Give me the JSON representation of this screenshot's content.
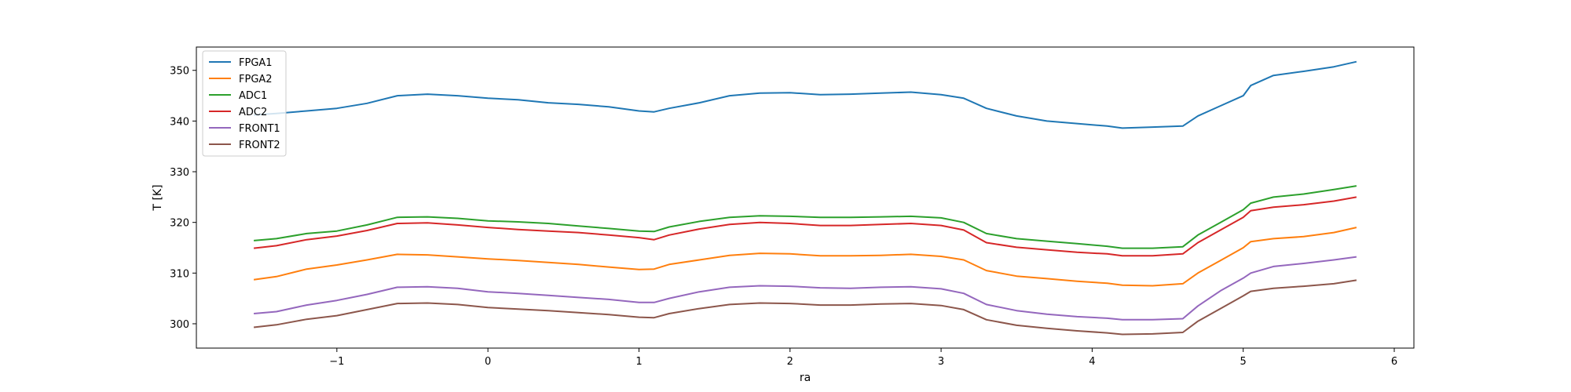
{
  "chart_data": {
    "type": "line",
    "title": "",
    "xlabel": "ra",
    "ylabel": "T [K]",
    "xlim": [
      -1.93,
      6.13
    ],
    "ylim": [
      295.2,
      354.6
    ],
    "xticks": [
      -1,
      0,
      1,
      2,
      3,
      4,
      5,
      6
    ],
    "xtick_labels": [
      "−1",
      "0",
      "1",
      "2",
      "3",
      "4",
      "5",
      "6"
    ],
    "yticks": [
      300,
      310,
      320,
      330,
      340,
      350
    ],
    "ytick_labels": [
      "300",
      "310",
      "320",
      "330",
      "340",
      "350"
    ],
    "grid": false,
    "legend_position": "top-left",
    "x": [
      -1.55,
      -1.4,
      -1.2,
      -1.0,
      -0.8,
      -0.6,
      -0.4,
      -0.2,
      0.0,
      0.2,
      0.4,
      0.6,
      0.8,
      1.0,
      1.1,
      1.2,
      1.4,
      1.6,
      1.8,
      2.0,
      2.2,
      2.4,
      2.6,
      2.8,
      3.0,
      3.15,
      3.3,
      3.5,
      3.7,
      3.9,
      4.1,
      4.2,
      4.4,
      4.6,
      4.7,
      4.85,
      5.0,
      5.05,
      5.2,
      5.4,
      5.6,
      5.75
    ],
    "series": [
      {
        "name": "FPGA1",
        "color": "#1f77b4",
        "values": [
          341.2,
          341.5,
          342.0,
          342.5,
          343.5,
          345.0,
          345.3,
          345.0,
          344.5,
          344.2,
          343.6,
          343.3,
          342.8,
          342.0,
          341.8,
          342.5,
          343.6,
          345.0,
          345.5,
          345.6,
          345.2,
          345.3,
          345.5,
          345.7,
          345.2,
          344.5,
          342.5,
          341.0,
          340.0,
          339.5,
          339.0,
          338.6,
          338.8,
          339.0,
          341.0,
          343.0,
          345.0,
          347.0,
          349.0,
          349.8,
          350.7,
          351.7
        ]
      },
      {
        "name": "FPGA2",
        "color": "#ff7f0e",
        "values": [
          308.7,
          309.3,
          310.8,
          311.6,
          312.6,
          313.7,
          313.6,
          313.2,
          312.8,
          312.5,
          312.1,
          311.7,
          311.2,
          310.7,
          310.8,
          311.7,
          312.6,
          313.5,
          313.9,
          313.8,
          313.4,
          313.4,
          313.5,
          313.7,
          313.3,
          312.6,
          310.5,
          309.4,
          308.9,
          308.4,
          308.0,
          307.6,
          307.5,
          307.9,
          310.0,
          312.5,
          315.0,
          316.2,
          316.8,
          317.2,
          318.0,
          319.0
        ]
      },
      {
        "name": "ADC1",
        "color": "#2ca02c",
        "values": [
          316.4,
          316.8,
          317.8,
          318.3,
          319.5,
          321.0,
          321.1,
          320.8,
          320.3,
          320.1,
          319.8,
          319.3,
          318.8,
          318.3,
          318.2,
          319.1,
          320.2,
          321.0,
          321.3,
          321.2,
          321.0,
          321.0,
          321.1,
          321.2,
          320.9,
          320.0,
          317.8,
          316.8,
          316.3,
          315.8,
          315.3,
          314.9,
          314.9,
          315.2,
          317.5,
          320.0,
          322.5,
          323.8,
          325.0,
          325.6,
          326.5,
          327.2
        ]
      },
      {
        "name": "ADC2",
        "color": "#d62728",
        "values": [
          314.9,
          315.4,
          316.6,
          317.3,
          318.4,
          319.8,
          319.9,
          319.5,
          319.0,
          318.6,
          318.3,
          318.0,
          317.5,
          317.0,
          316.6,
          317.5,
          318.7,
          319.6,
          320.0,
          319.8,
          319.4,
          319.4,
          319.6,
          319.8,
          319.4,
          318.5,
          316.0,
          315.1,
          314.6,
          314.1,
          313.8,
          313.4,
          313.4,
          313.8,
          316.0,
          318.5,
          321.0,
          322.3,
          323.0,
          323.5,
          324.2,
          325.0
        ]
      },
      {
        "name": "FRONT1",
        "color": "#9467bd",
        "values": [
          302.0,
          302.4,
          303.7,
          304.6,
          305.8,
          307.2,
          307.3,
          307.0,
          306.3,
          306.0,
          305.6,
          305.2,
          304.8,
          304.2,
          304.2,
          305.0,
          306.3,
          307.2,
          307.5,
          307.4,
          307.1,
          307.0,
          307.2,
          307.3,
          306.9,
          306.0,
          303.8,
          302.6,
          301.9,
          301.4,
          301.1,
          300.8,
          300.8,
          301.0,
          303.5,
          306.5,
          309.0,
          310.0,
          311.3,
          311.9,
          312.6,
          313.2
        ]
      },
      {
        "name": "FRONT2",
        "color": "#8c564b",
        "values": [
          299.3,
          299.8,
          300.9,
          301.6,
          302.8,
          304.0,
          304.1,
          303.8,
          303.2,
          302.9,
          302.6,
          302.2,
          301.8,
          301.3,
          301.2,
          302.0,
          303.0,
          303.8,
          304.1,
          304.0,
          303.7,
          303.7,
          303.9,
          304.0,
          303.6,
          302.8,
          300.8,
          299.7,
          299.1,
          298.6,
          298.2,
          297.9,
          298.0,
          298.3,
          300.5,
          303.0,
          305.5,
          306.4,
          307.0,
          307.4,
          307.9,
          308.6
        ]
      }
    ]
  }
}
